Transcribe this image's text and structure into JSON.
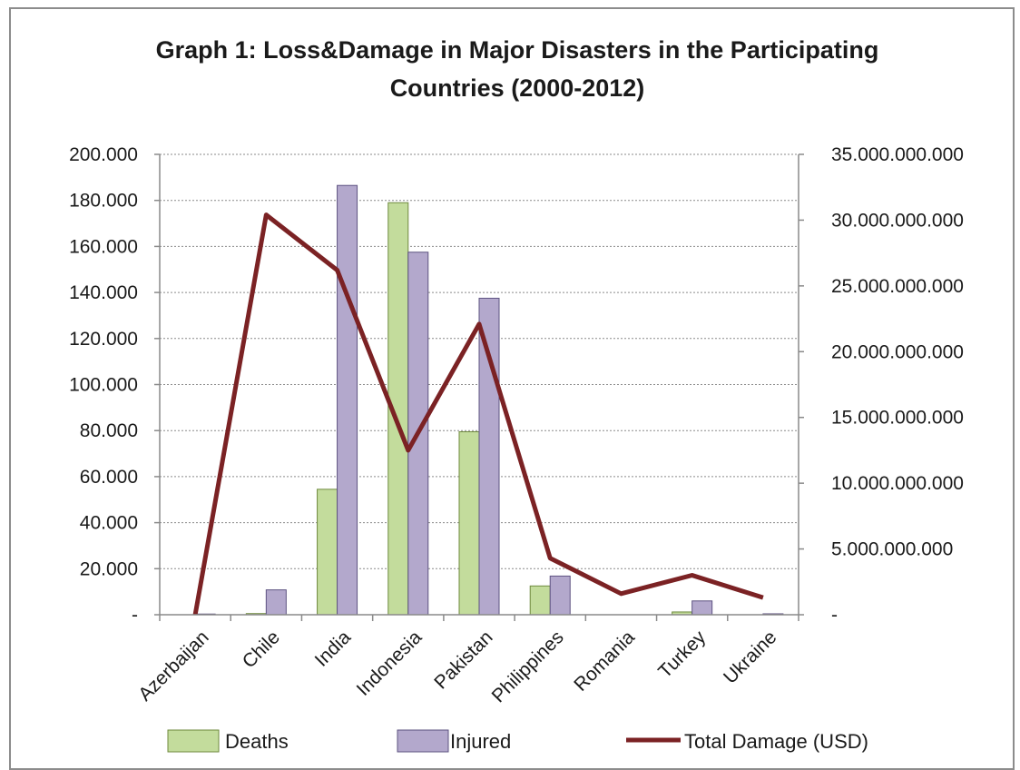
{
  "chart_data": {
    "type": "bar+line",
    "title_lines": [
      "Graph 1: Loss&Damage in Major Disasters in the Participating",
      "Countries (2000-2012)"
    ],
    "categories": [
      "Azerbaijan",
      "Chile",
      "India",
      "Indonesia",
      "Pakistan",
      "Philippines",
      "Romania",
      "Turkey",
      "Ukraine"
    ],
    "series": [
      {
        "name": "Deaths",
        "type": "bar",
        "axis": "left",
        "color": "#c3dc9c",
        "stroke": "#6f8a3e",
        "values": [
          0,
          500,
          54500,
          179000,
          79500,
          12500,
          0,
          1200,
          0
        ]
      },
      {
        "name": "Injured",
        "type": "bar",
        "axis": "left",
        "color": "#b3a8cc",
        "stroke": "#5e5381",
        "values": [
          300,
          10800,
          186500,
          157500,
          137500,
          16800,
          0,
          6000,
          400
        ]
      },
      {
        "name": "Total Damage (USD)",
        "type": "line",
        "axis": "right",
        "color": "#7b2224",
        "values": [
          0,
          30400000000,
          26200000000,
          12500000000,
          22100000000,
          4300000000,
          1600000000,
          3000000000,
          1300000000
        ]
      }
    ],
    "y_left": {
      "min": 0,
      "max": 200000,
      "ticks": [
        {
          "v": 0,
          "label": "-"
        },
        {
          "v": 20000,
          "label": "20.000"
        },
        {
          "v": 40000,
          "label": "40.000"
        },
        {
          "v": 60000,
          "label": "60.000"
        },
        {
          "v": 80000,
          "label": "80.000"
        },
        {
          "v": 100000,
          "label": "100.000"
        },
        {
          "v": 120000,
          "label": "120.000"
        },
        {
          "v": 140000,
          "label": "140.000"
        },
        {
          "v": 160000,
          "label": "160.000"
        },
        {
          "v": 180000,
          "label": "180.000"
        },
        {
          "v": 200000,
          "label": "200.000"
        }
      ]
    },
    "y_right": {
      "min": 0,
      "max": 35000000000,
      "ticks": [
        {
          "v": 0,
          "label": "-"
        },
        {
          "v": 5000000000,
          "label": "5.000.000.000"
        },
        {
          "v": 10000000000,
          "label": "10.000.000.000"
        },
        {
          "v": 15000000000,
          "label": "15.000.000.000"
        },
        {
          "v": 20000000000,
          "label": "20.000.000.000"
        },
        {
          "v": 25000000000,
          "label": "25.000.000.000"
        },
        {
          "v": 30000000000,
          "label": "30.000.000.000"
        },
        {
          "v": 35000000000,
          "label": "35.000.000.000"
        }
      ]
    },
    "grid": true,
    "legend": {
      "position": "bottom",
      "entries": [
        "Deaths",
        "Injured",
        "Total Damage (USD)"
      ]
    }
  }
}
